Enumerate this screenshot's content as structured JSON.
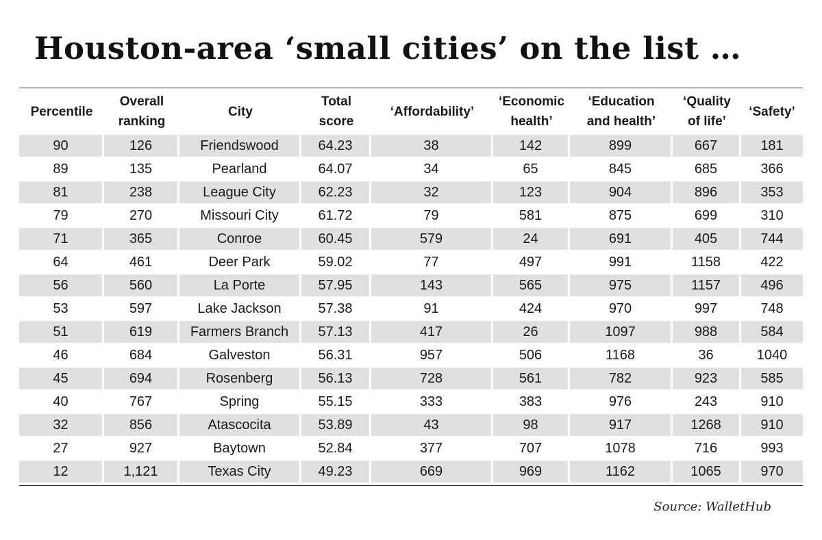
{
  "chart_data": {
    "type": "table",
    "title": "Houston-area ‘small cities’ on the list …",
    "columns": [
      [
        "Percentile"
      ],
      [
        "Overall",
        "ranking"
      ],
      [
        "City"
      ],
      [
        "Total",
        "score"
      ],
      [
        "‘Affordability’"
      ],
      [
        "‘Economic",
        "health’"
      ],
      [
        "‘Education",
        "and health’"
      ],
      [
        "‘Quality",
        "of life’"
      ],
      [
        "‘Safety’"
      ]
    ],
    "rows": [
      [
        "90",
        "126",
        "Friendswood",
        "64.23",
        "38",
        "142",
        "899",
        "667",
        "181"
      ],
      [
        "89",
        "135",
        "Pearland",
        "64.07",
        "34",
        "65",
        "845",
        "685",
        "366"
      ],
      [
        "81",
        "238",
        "League City",
        "62.23",
        "32",
        "123",
        "904",
        "896",
        "353"
      ],
      [
        "79",
        "270",
        "Missouri City",
        "61.72",
        "79",
        "581",
        "875",
        "699",
        "310"
      ],
      [
        "71",
        "365",
        "Conroe",
        "60.45",
        "579",
        "24",
        "691",
        "405",
        "744"
      ],
      [
        "64",
        "461",
        "Deer Park",
        "59.02",
        "77",
        "497",
        "991",
        "1158",
        "422"
      ],
      [
        "56",
        "560",
        "La Porte",
        "57.95",
        "143",
        "565",
        "975",
        "1157",
        "496"
      ],
      [
        "53",
        "597",
        "Lake Jackson",
        "57.38",
        "91",
        "424",
        "970",
        "997",
        "748"
      ],
      [
        "51",
        "619",
        "Farmers Branch",
        "57.13",
        "417",
        "26",
        "1097",
        "988",
        "584"
      ],
      [
        "46",
        "684",
        "Galveston",
        "56.31",
        "957",
        "506",
        "1168",
        "36",
        "1040"
      ],
      [
        "45",
        "694",
        "Rosenberg",
        "56.13",
        "728",
        "561",
        "782",
        "923",
        "585"
      ],
      [
        "40",
        "767",
        "Spring",
        "55.15",
        "333",
        "383",
        "976",
        "243",
        "910"
      ],
      [
        "32",
        "856",
        "Atascocita",
        "53.89",
        "43",
        "98",
        "917",
        "1268",
        "910"
      ],
      [
        "27",
        "927",
        "Baytown",
        "52.84",
        "377",
        "707",
        "1078",
        "716",
        "993"
      ],
      [
        "12",
        "1,121",
        "Texas City",
        "49.23",
        "669",
        "969",
        "1162",
        "1065",
        "970"
      ]
    ],
    "source": "Source: WalletHub"
  },
  "colors": {
    "row_shade": "#e0e0e0",
    "row_plain": "#ffffff",
    "rule": "#222222",
    "text": "#1a1a1a"
  }
}
